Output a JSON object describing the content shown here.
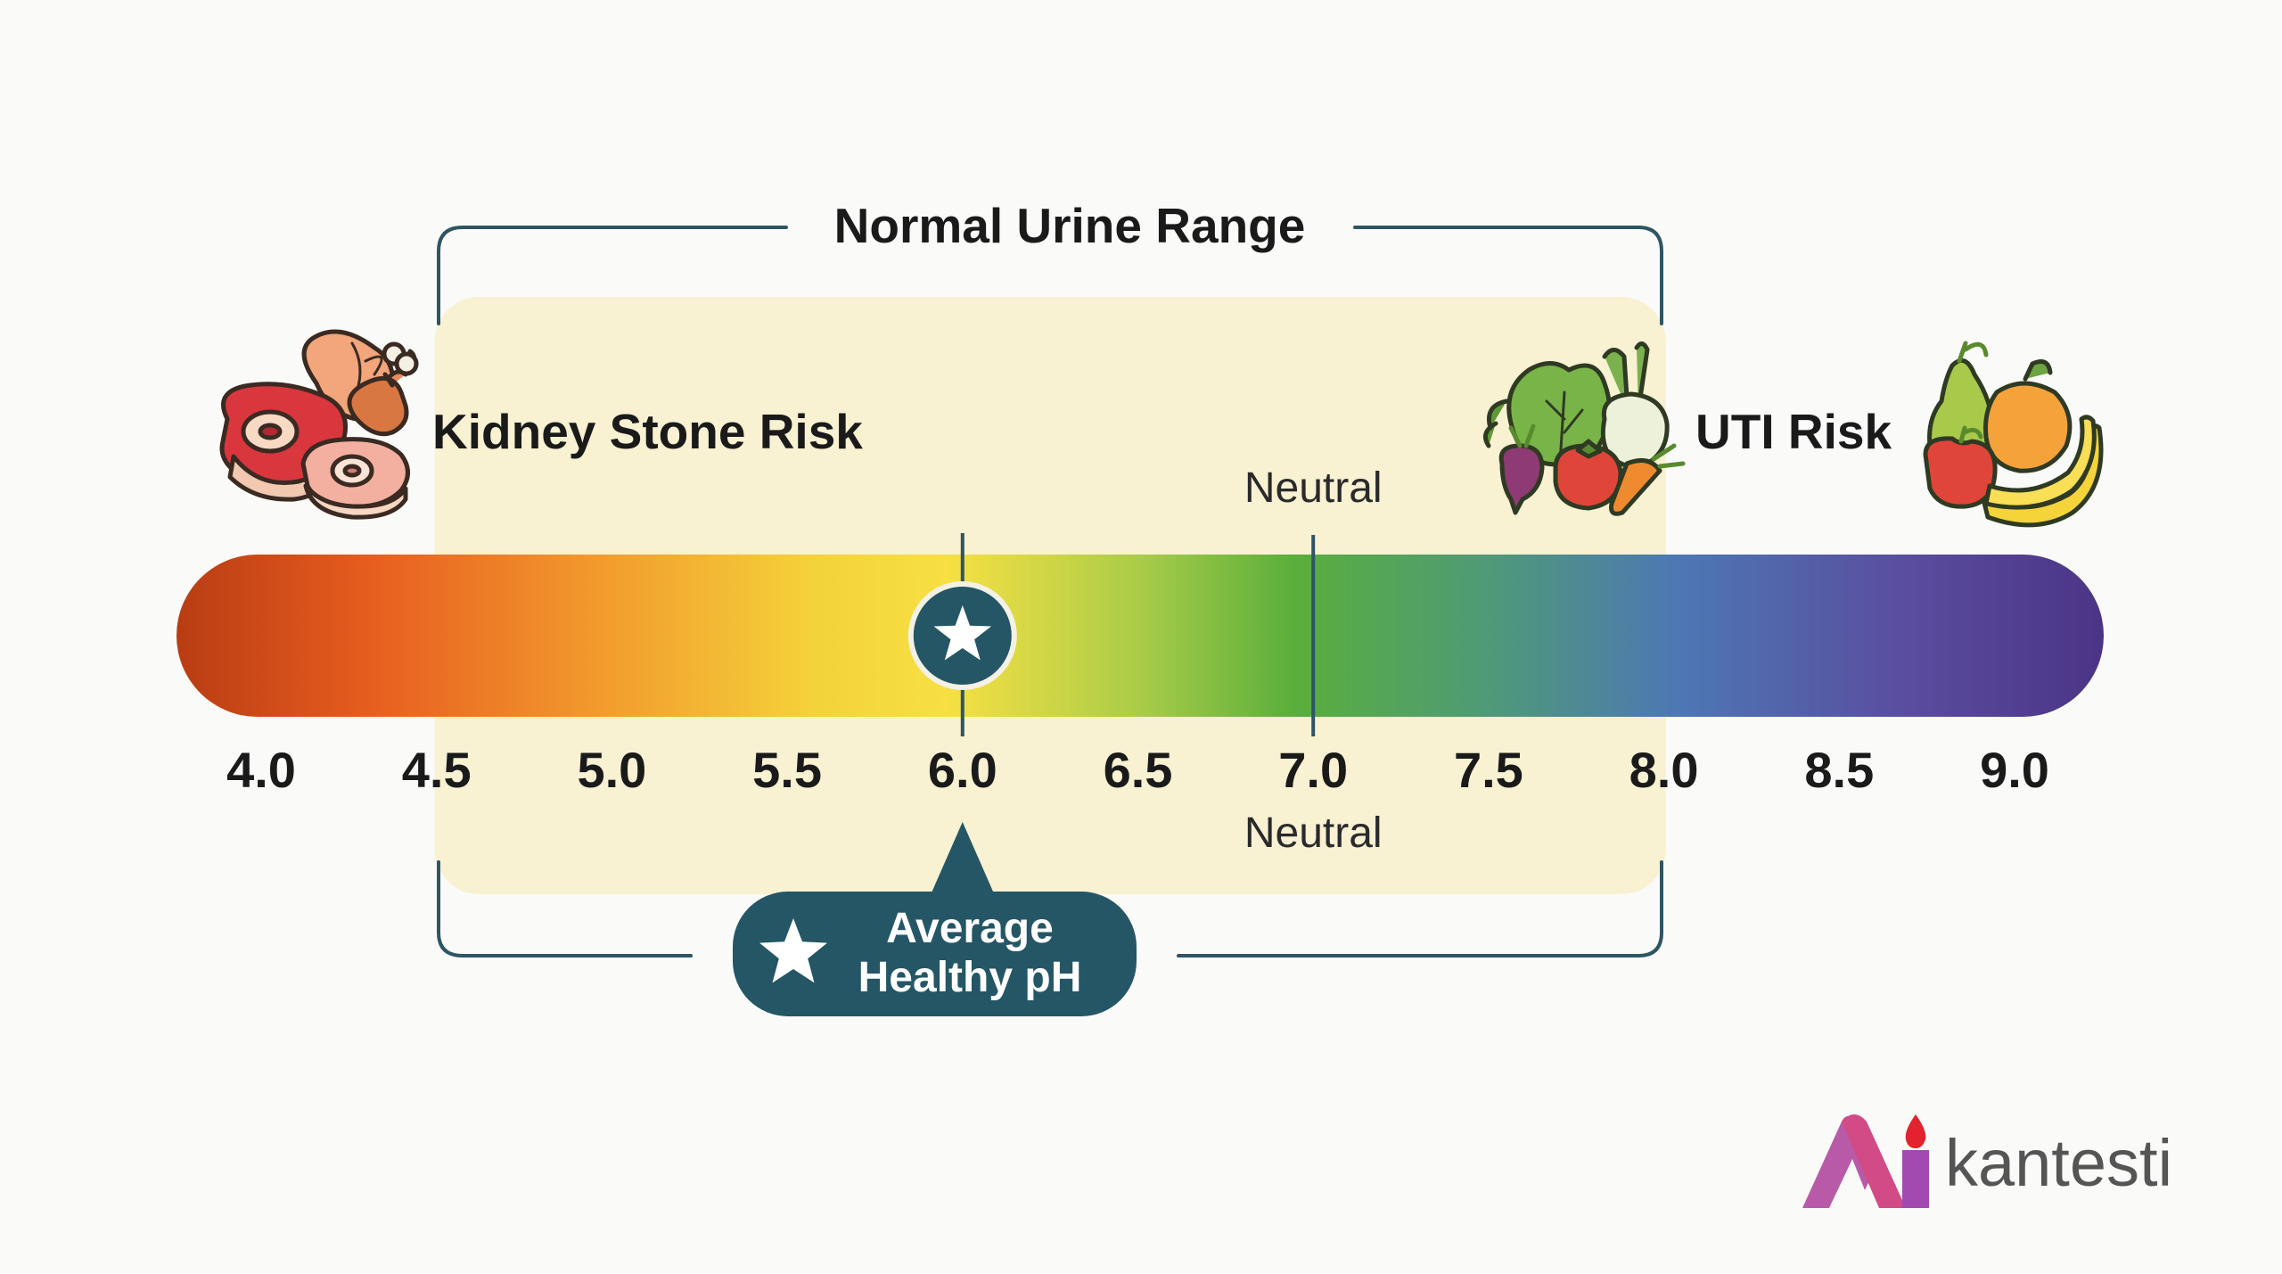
{
  "title": "Normal Urine Range",
  "left_label": "Kidney Stone Risk",
  "right_label": "UTI Risk",
  "neutral_label_top": "Neutral",
  "neutral_label_bottom": "Neutral",
  "callout": {
    "line1": "Average",
    "line2": "Healthy pH"
  },
  "brand": {
    "name": "kantesti"
  },
  "chart_data": {
    "type": "scale",
    "title": "Normal Urine Range",
    "axis_min": 4.0,
    "axis_max": 9.0,
    "ticks": [
      "4.0",
      "4.5",
      "5.0",
      "5.5",
      "6.0",
      "6.5",
      "7.0",
      "7.5",
      "8.0",
      "8.5",
      "9.0"
    ],
    "normal_range": [
      4.5,
      8.0
    ],
    "neutral_value": 7.0,
    "average_healthy_value": 6.0,
    "low_end_label": "Kidney Stone Risk",
    "high_end_label": "UTI Risk"
  },
  "colors": {
    "highlight": "#f8f1d2",
    "bracket": "#2d5564",
    "callout_bg": "#245665",
    "marker_bg": "#245665",
    "brand_text": "#555555",
    "brand_accent": "#d23a7a"
  },
  "icons": {
    "left": "meat-poultry-icon",
    "right_mid": "vegetables-icon",
    "right_end": "fruits-icon",
    "marker": "star-icon",
    "callout": "star-icon",
    "brand": "kantesti-logo-icon"
  }
}
